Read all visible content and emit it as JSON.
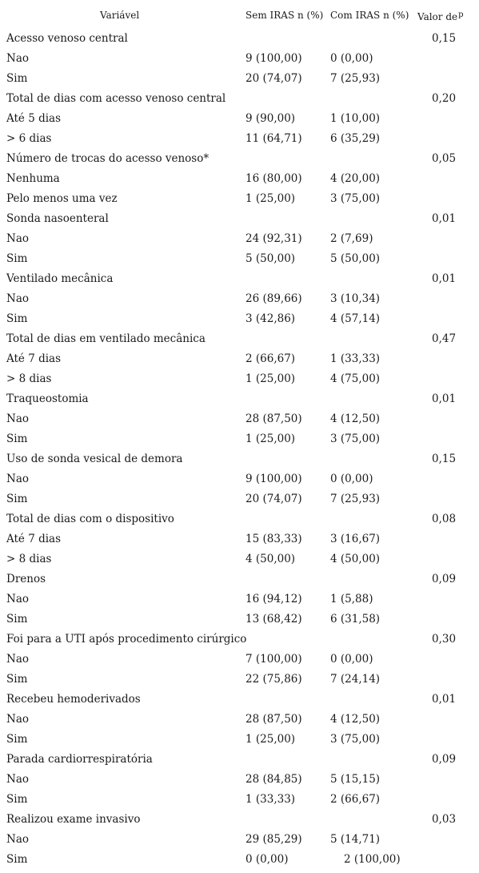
{
  "header": {
    "variable": "Variável",
    "sem_iras": "Sem IRAS n (%)",
    "com_iras": "Com IRAS n (%)",
    "p_value": "Valor de",
    "p_super": "p"
  },
  "rows": [
    {
      "label": "Acesso venoso central",
      "sem": "",
      "com": "",
      "p": "0,15"
    },
    {
      "label": "Nao",
      "sem": "9 (100,00)",
      "com": "0 (0,00)",
      "p": ""
    },
    {
      "label": "Sim",
      "sem": "20 (74,07)",
      "com": "7 (25,93)",
      "p": ""
    },
    {
      "label": "Total de dias com acesso venoso central",
      "sem": "",
      "com": "",
      "p": "0,20"
    },
    {
      "label": "Até 5 dias",
      "sem": "9 (90,00)",
      "com": "1 (10,00)",
      "p": ""
    },
    {
      "label": "> 6 dias",
      "sem": "11 (64,71)",
      "com": "6 (35,29)",
      "p": ""
    },
    {
      "label": "Número de trocas do acesso venoso*",
      "sem": "",
      "com": "",
      "p": "0,05"
    },
    {
      "label": "Nenhuma",
      "sem": "16 (80,00)",
      "com": "4 (20,00)",
      "p": ""
    },
    {
      "label": "Pelo menos uma vez",
      "sem": "1 (25,00)",
      "com": "3 (75,00)",
      "p": ""
    },
    {
      "label": "Sonda nasoenteral",
      "sem": "",
      "com": "",
      "p": "0,01"
    },
    {
      "label": "Nao",
      "sem": "24 (92,31)",
      "com": "2 (7,69)",
      "p": ""
    },
    {
      "label": "Sim",
      "sem": "5 (50,00)",
      "com": "5 (50,00)",
      "p": ""
    },
    {
      "label": "Ventilado mecânica",
      "sem": "",
      "com": "",
      "p": "0,01"
    },
    {
      "label": "Nao",
      "sem": "26 (89,66)",
      "com": "3 (10,34)",
      "p": ""
    },
    {
      "label": "Sim",
      "sem": "3 (42,86)",
      "com": "4 (57,14)",
      "p": ""
    },
    {
      "label": "Total de dias em ventilado mecânica",
      "sem": "",
      "com": "",
      "p": "0,47"
    },
    {
      "label": "Até 7 dias",
      "sem": "2 (66,67)",
      "com": "1 (33,33)",
      "p": ""
    },
    {
      "label": "> 8 dias",
      "sem": "1 (25,00)",
      "com": "4 (75,00)",
      "p": ""
    },
    {
      "label": "Traqueostomia",
      "sem": "",
      "com": "",
      "p": "0,01"
    },
    {
      "label": "Nao",
      "sem": "28 (87,50)",
      "com": "4 (12,50)",
      "p": ""
    },
    {
      "label": "Sim",
      "sem": "1 (25,00)",
      "com": "3 (75,00)",
      "p": ""
    },
    {
      "label": "Uso de sonda vesical de demora",
      "sem": "",
      "com": "",
      "p": "0,15"
    },
    {
      "label": "Nao",
      "sem": "9 (100,00)",
      "com": "0 (0,00)",
      "p": ""
    },
    {
      "label": "Sim",
      "sem": "20 (74,07)",
      "com": "7 (25,93)",
      "p": ""
    },
    {
      "label": "Total de dias com o dispositivo",
      "sem": "",
      "com": "",
      "p": "0,08"
    },
    {
      "label": "Até 7 dias",
      "sem": "15 (83,33)",
      "com": "3 (16,67)",
      "p": ""
    },
    {
      "label": "> 8 dias",
      "sem": "4 (50,00)",
      "com": "4 (50,00)",
      "p": ""
    },
    {
      "label": "Drenos",
      "sem": "",
      "com": "",
      "p": "0,09"
    },
    {
      "label": "Nao",
      "sem": "16 (94,12)",
      "com": "1 (5,88)",
      "p": ""
    },
    {
      "label": "Sim",
      "sem": "13 (68,42)",
      "com": "6 (31,58)",
      "p": ""
    },
    {
      "label": "Foi para a UTI após procedimento cirúrgico",
      "sem": "",
      "com": "",
      "p": "0,30"
    },
    {
      "label": "Nao",
      "sem": "7 (100,00)",
      "com": "0 (0,00)",
      "p": ""
    },
    {
      "label": "Sim",
      "sem": "22 (75,86)",
      "com": "7 (24,14)",
      "p": ""
    },
    {
      "label": "Recebeu hemoderivados",
      "sem": "",
      "com": "",
      "p": "0,01"
    },
    {
      "label": "Nao",
      "sem": "28 (87,50)",
      "com": "4 (12,50)",
      "p": ""
    },
    {
      "label": "Sim",
      "sem": "1 (25,00)",
      "com": "3 (75,00)",
      "p": ""
    },
    {
      "label": "Parada cardiorrespiratória",
      "sem": "",
      "com": "",
      "p": "0,09"
    },
    {
      "label": "Nao",
      "sem": "28 (84,85)",
      "com": "5 (15,15)",
      "p": ""
    },
    {
      "label": "Sim",
      "sem": "1 (33,33)",
      "com": "2 (66,67)",
      "p": ""
    },
    {
      "label": "Realizou exame invasivo",
      "sem": "",
      "com": "",
      "p": "0,03"
    },
    {
      "label": "Nao",
      "sem": "29 (85,29)",
      "com": "5 (14,71)",
      "p": ""
    },
    {
      "label": "Sim",
      "sem": "0 (0,00)",
      "com": "2 (100,00)",
      "p": ""
    }
  ]
}
